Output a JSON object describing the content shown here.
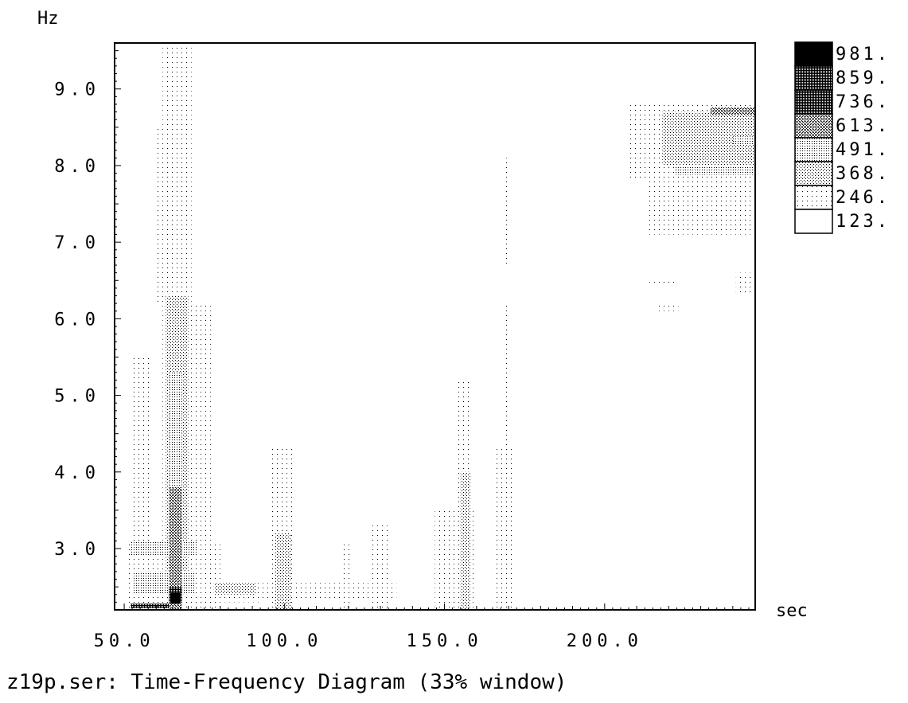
{
  "chart_data": {
    "type": "heatmap",
    "title": "z19p.ser: Time-Frequency Diagram (33% window)",
    "xlabel": "sec",
    "ylabel": "Hz",
    "xlim": [
      47,
      247
    ],
    "ylim": [
      2.2,
      9.6
    ],
    "x_ticks": [
      {
        "value": 50,
        "label": "50.0"
      },
      {
        "value": 100,
        "label": "100.0"
      },
      {
        "value": 150,
        "label": "150.0"
      },
      {
        "value": 200,
        "label": "200.0"
      }
    ],
    "y_ticks": [
      {
        "value": 3,
        "label": "3.0"
      },
      {
        "value": 4,
        "label": "4.0"
      },
      {
        "value": 5,
        "label": "5.0"
      },
      {
        "value": 6,
        "label": "6.0"
      },
      {
        "value": 7,
        "label": "7.0"
      },
      {
        "value": 8,
        "label": "8.0"
      },
      {
        "value": 9,
        "label": "9.0"
      }
    ],
    "legend": {
      "position": "right",
      "levels": [
        {
          "label": "981.",
          "value": 981
        },
        {
          "label": "859.",
          "value": 859
        },
        {
          "label": "736.",
          "value": 736
        },
        {
          "label": "613.",
          "value": 613
        },
        {
          "label": "491.",
          "value": 491
        },
        {
          "label": "368.",
          "value": 368
        },
        {
          "label": "246.",
          "value": 246
        },
        {
          "label": "123.",
          "value": 123
        }
      ]
    },
    "grid": false,
    "regions": [
      {
        "x": [
          62,
          71
        ],
        "y": [
          2.2,
          9.6
        ],
        "level": 246
      },
      {
        "x": [
          51,
          80
        ],
        "y": [
          2.2,
          3.1
        ],
        "level": 246
      },
      {
        "x": [
          52,
          58
        ],
        "y": [
          2.2,
          5.5
        ],
        "level": 246
      },
      {
        "x": [
          71,
          77
        ],
        "y": [
          2.2,
          6.2
        ],
        "level": 246
      },
      {
        "x": [
          60,
          62
        ],
        "y": [
          6.2,
          8.5
        ],
        "level": 246
      },
      {
        "x": [
          63,
          70
        ],
        "y": [
          2.4,
          6.3
        ],
        "level": 368
      },
      {
        "x": [
          64,
          68
        ],
        "y": [
          2.2,
          5.3
        ],
        "level": 491
      },
      {
        "x": [
          64,
          68
        ],
        "y": [
          2.2,
          3.8
        ],
        "level": 613
      },
      {
        "x": [
          53,
          72
        ],
        "y": [
          2.4,
          2.7
        ],
        "level": 491
      },
      {
        "x": [
          52,
          73
        ],
        "y": [
          2.9,
          3.1
        ],
        "level": 491
      },
      {
        "x": [
          64,
          68
        ],
        "y": [
          2.3,
          2.5
        ],
        "level": 736
      },
      {
        "x": [
          64.5,
          67.5
        ],
        "y": [
          2.28,
          2.42
        ],
        "level": 981
      },
      {
        "x": [
          52,
          64
        ],
        "y": [
          2.22,
          2.28
        ],
        "level": 859
      },
      {
        "x": [
          75,
          93
        ],
        "y": [
          2.3,
          2.55
        ],
        "level": 246
      },
      {
        "x": [
          78,
          91
        ],
        "y": [
          2.4,
          2.55
        ],
        "level": 368
      },
      {
        "x": [
          96,
          103
        ],
        "y": [
          2.2,
          4.35
        ],
        "level": 246
      },
      {
        "x": [
          97,
          102
        ],
        "y": [
          2.2,
          3.2
        ],
        "level": 368
      },
      {
        "x": [
          93,
          135
        ],
        "y": [
          2.35,
          2.55
        ],
        "level": 246
      },
      {
        "x": [
          118,
          121
        ],
        "y": [
          2.2,
          3.1
        ],
        "level": 246
      },
      {
        "x": [
          127,
          133
        ],
        "y": [
          2.2,
          3.3
        ],
        "level": 246
      },
      {
        "x": [
          147,
          159
        ],
        "y": [
          2.2,
          3.5
        ],
        "level": 246
      },
      {
        "x": [
          154,
          158
        ],
        "y": [
          2.2,
          5.2
        ],
        "level": 246
      },
      {
        "x": [
          155,
          158
        ],
        "y": [
          2.2,
          4.0
        ],
        "level": 368
      },
      {
        "x": [
          165,
          171
        ],
        "y": [
          2.2,
          4.3
        ],
        "level": 246
      },
      {
        "x": [
          168,
          170
        ],
        "y": [
          2.2,
          6.2
        ],
        "level": 246
      },
      {
        "x": [
          169,
          170
        ],
        "y": [
          6.7,
          8.1
        ],
        "level": 246
      },
      {
        "x": [
          207,
          247
        ],
        "y": [
          7.8,
          8.8
        ],
        "level": 246
      },
      {
        "x": [
          213,
          247
        ],
        "y": [
          7.1,
          7.8
        ],
        "level": 246
      },
      {
        "x": [
          218,
          247
        ],
        "y": [
          8.0,
          8.7
        ],
        "level": 368
      },
      {
        "x": [
          222,
          247
        ],
        "y": [
          7.88,
          7.98
        ],
        "level": 491
      },
      {
        "x": [
          233,
          247
        ],
        "y": [
          8.66,
          8.76
        ],
        "level": 613
      },
      {
        "x": [
          240,
          247
        ],
        "y": [
          8.28,
          8.38
        ],
        "level": 491
      },
      {
        "x": [
          214,
          222
        ],
        "y": [
          6.45,
          6.5
        ],
        "level": 246
      },
      {
        "x": [
          216,
          223
        ],
        "y": [
          6.1,
          6.18
        ],
        "level": 246
      },
      {
        "x": [
          241,
          246
        ],
        "y": [
          6.3,
          6.6
        ],
        "level": 246
      }
    ]
  }
}
